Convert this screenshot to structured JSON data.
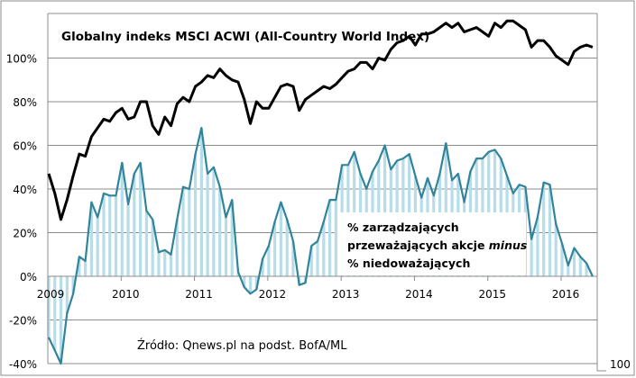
{
  "chart_data": {
    "type": "line",
    "title": "Globalny indeks MSCI ACWI (All-Country World Index)",
    "annotation_lines": [
      "% zarządzających",
      "przeważających akcje ",
      "minus",
      "% niedoważających"
    ],
    "source": "Źródło: Qnews.pl na podst. BofA/ML",
    "corner_label": "100",
    "xlabel": "",
    "ylabel": "",
    "ylim": [
      -40,
      120
    ],
    "yticks": [
      "-40%",
      "-20%",
      "0%",
      "20%",
      "40%",
      "60%",
      "80%",
      "100%"
    ],
    "ytick_values": [
      -40,
      -20,
      0,
      20,
      40,
      60,
      80,
      100
    ],
    "xticks": [
      "2009",
      "2010",
      "2011",
      "2012",
      "2013",
      "2014",
      "2015",
      "2016"
    ],
    "x_start": "2009-01",
    "x_frequency": "monthly",
    "grid": true,
    "series": [
      {
        "name": "Globalny indeks MSCI ACWI",
        "kind": "line",
        "color": "#000000",
        "values": [
          47,
          38,
          26,
          35,
          46,
          56,
          55,
          64,
          68,
          72,
          71,
          75,
          77,
          72,
          73,
          80,
          80,
          69,
          65,
          73,
          69,
          79,
          82,
          80,
          87,
          89,
          92,
          91,
          95,
          92,
          90,
          89,
          81,
          70,
          80,
          77,
          77,
          82,
          87,
          88,
          87,
          76,
          81,
          83,
          85,
          87,
          86,
          88,
          91,
          94,
          95,
          98,
          98,
          95,
          100,
          99,
          104,
          107,
          108,
          110,
          106,
          111,
          111,
          112,
          114,
          116,
          114,
          116,
          112,
          113,
          114,
          112,
          110,
          116,
          114,
          117,
          117,
          115,
          113,
          105,
          108,
          108,
          105,
          101,
          99,
          97,
          103,
          105,
          106,
          105
        ]
      },
      {
        "name": "% zarządzających przeważających akcje minus % niedoważających",
        "kind": "bar+line",
        "color": "#31849b",
        "bar_color": "#b7dde8",
        "values": [
          -28,
          -34,
          -40,
          -17,
          -8,
          9,
          7,
          34,
          27,
          38,
          37,
          37,
          52,
          33,
          47,
          52,
          30,
          26,
          11,
          12,
          10,
          26,
          41,
          40,
          56,
          68,
          47,
          50,
          41,
          27,
          35,
          2,
          -5,
          -8,
          -6,
          8,
          14,
          25,
          34,
          26,
          16,
          -4,
          -3,
          14,
          16,
          25,
          35,
          35,
          51,
          51,
          57,
          47,
          40,
          48,
          53,
          60,
          49,
          53,
          54,
          56,
          46,
          36,
          45,
          37,
          47,
          61,
          44,
          47,
          34,
          48,
          54,
          54,
          57,
          58,
          54,
          46,
          38,
          42,
          41,
          17,
          27,
          43,
          42,
          24,
          15,
          5,
          13,
          9,
          6,
          0
        ]
      }
    ]
  }
}
